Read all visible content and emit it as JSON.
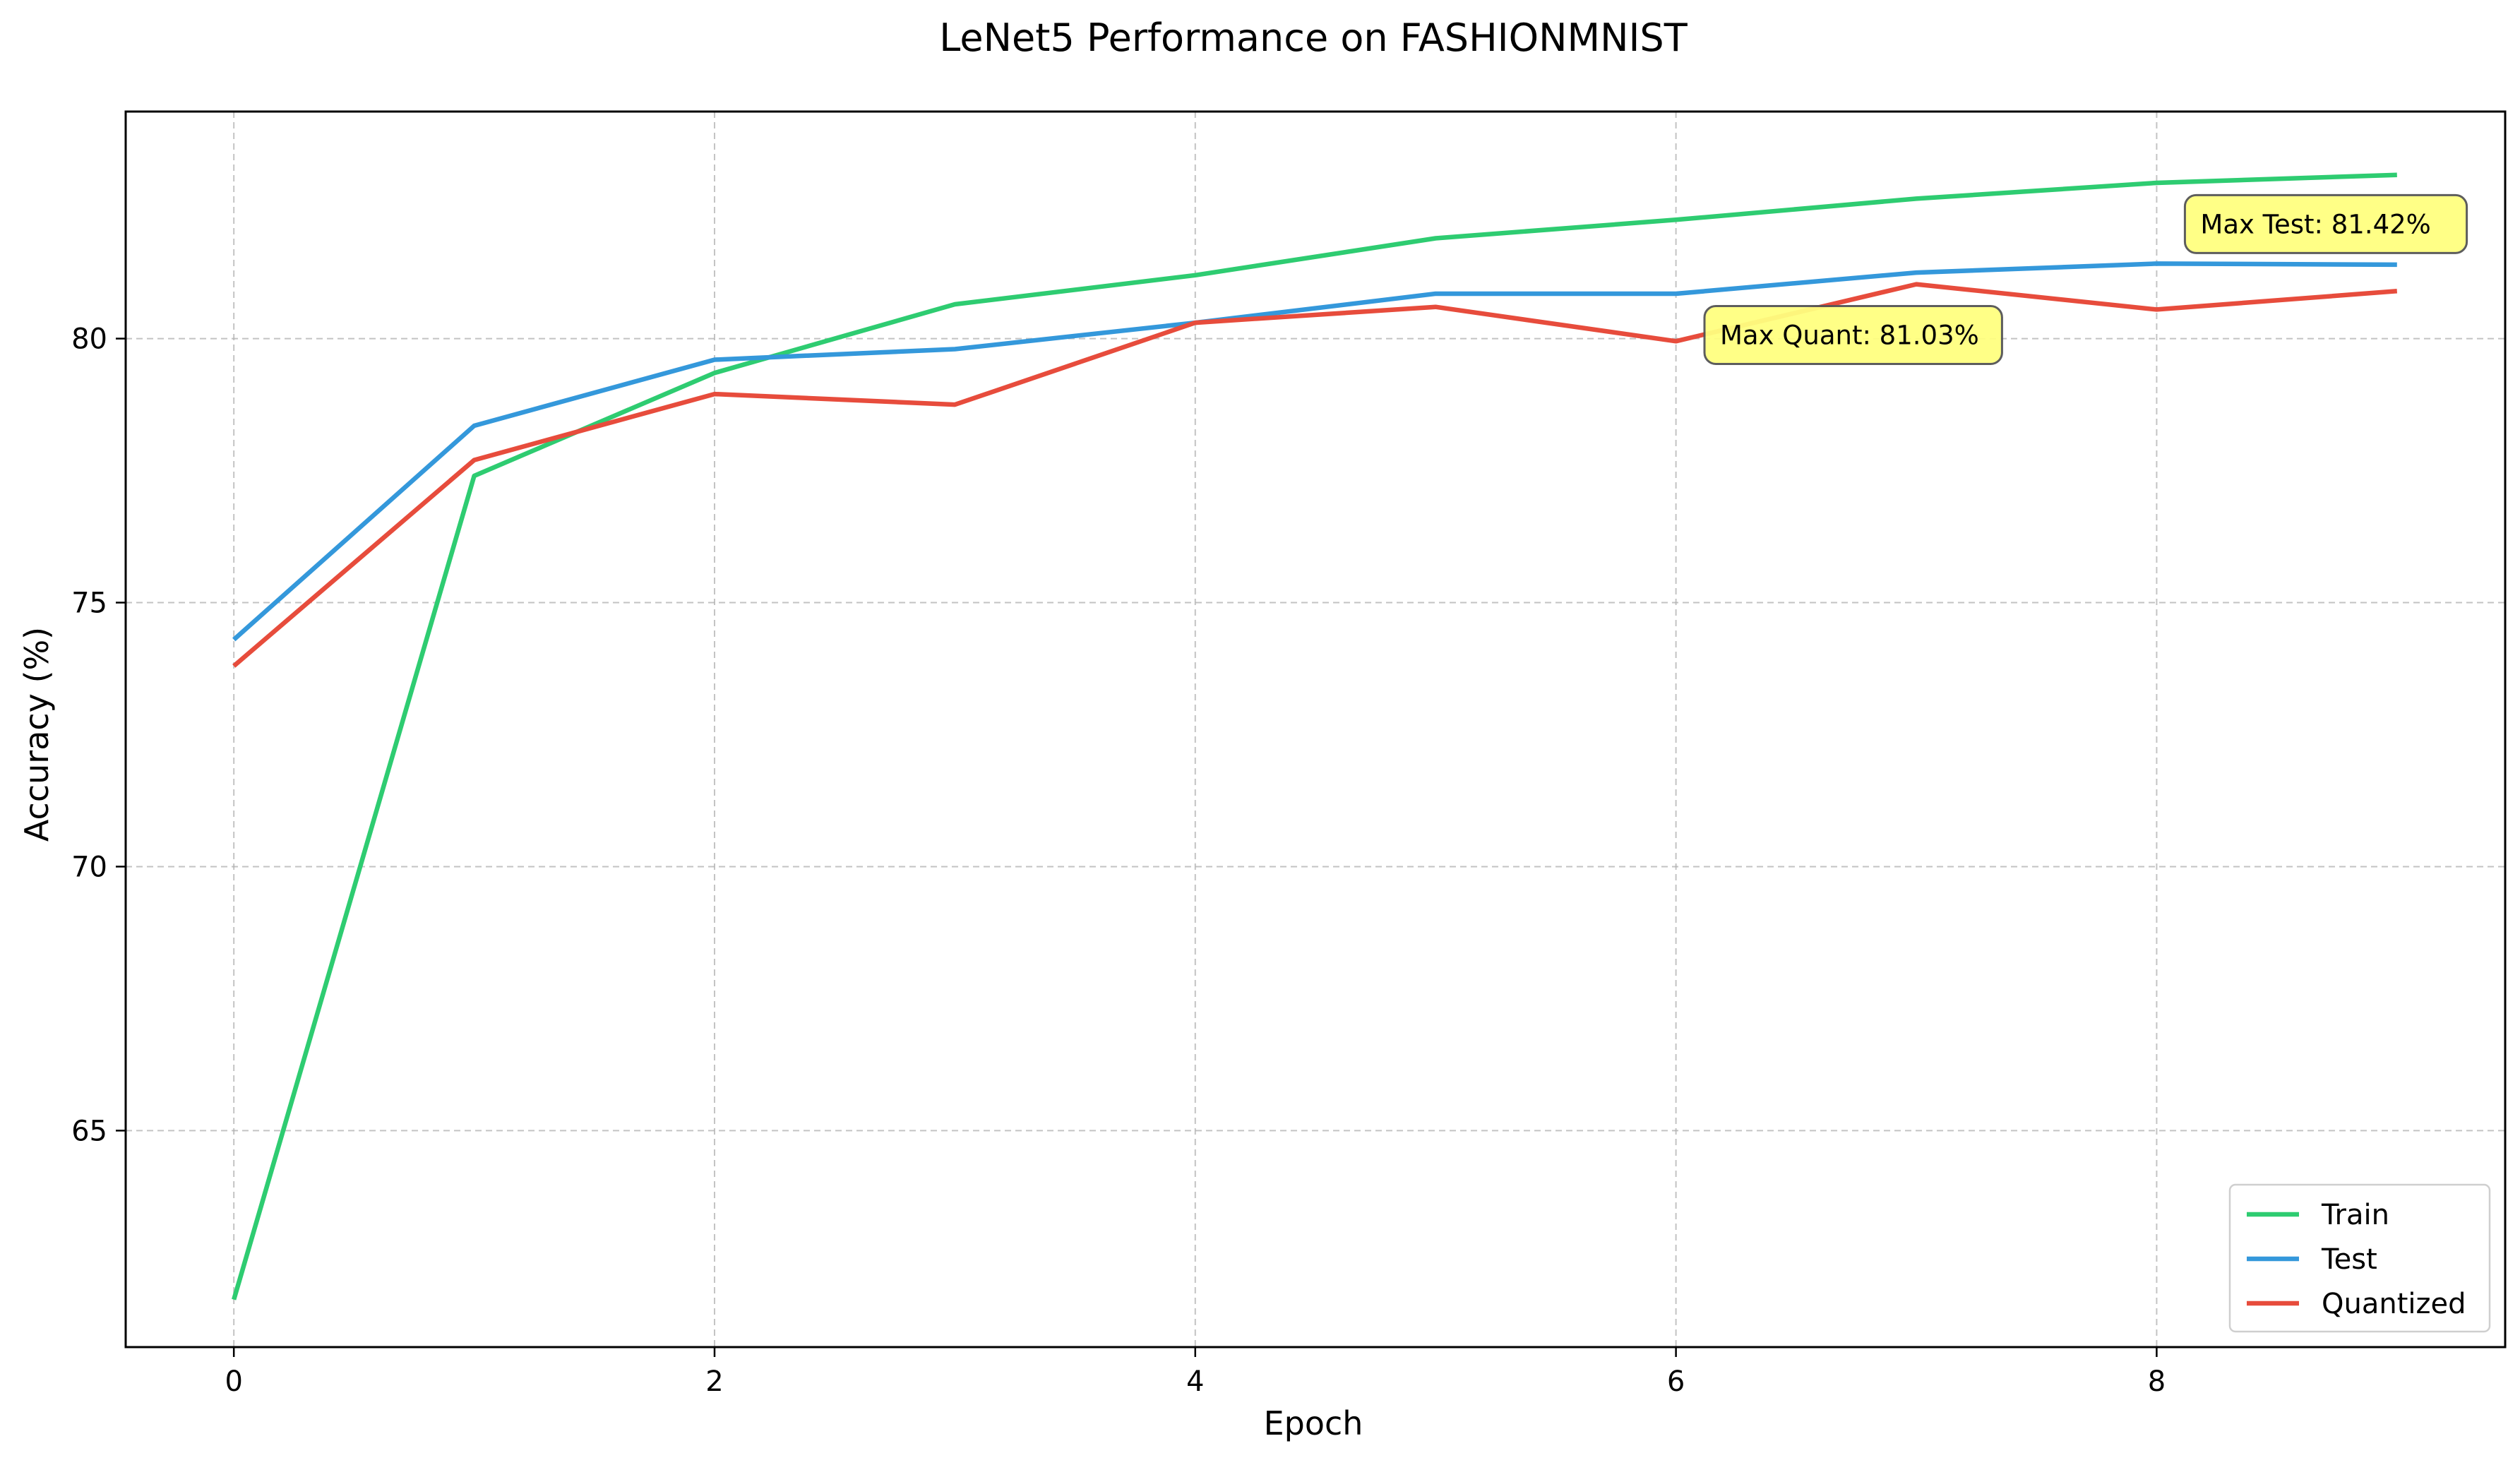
{
  "chart_data": {
    "type": "line",
    "title": "LeNet5 Performance on FASHIONMNIST",
    "xlabel": "Epoch",
    "ylabel": "Accuracy (%)",
    "x": [
      0,
      1,
      2,
      3,
      4,
      5,
      6,
      7,
      8,
      9
    ],
    "xlim": [
      -0.45,
      9.45
    ],
    "ylim": [
      60.9,
      84.3
    ],
    "xticks": [
      0,
      2,
      4,
      6,
      8
    ],
    "yticks": [
      65,
      70,
      75,
      80
    ],
    "grid": true,
    "legend_position": "lower right",
    "series": [
      {
        "name": "Train",
        "color": "#2ecc71",
        "values": [
          61.8,
          77.4,
          79.35,
          80.65,
          81.2,
          81.9,
          82.25,
          82.65,
          82.95,
          83.1
        ]
      },
      {
        "name": "Test",
        "color": "#3498db",
        "values": [
          74.3,
          78.35,
          79.6,
          79.8,
          80.3,
          80.85,
          80.85,
          81.25,
          81.42,
          81.4
        ]
      },
      {
        "name": "Quantized",
        "color": "#e74c3c",
        "values": [
          73.8,
          77.7,
          78.95,
          78.75,
          80.3,
          80.6,
          79.95,
          81.03,
          80.55,
          80.9
        ]
      }
    ],
    "annotations": [
      {
        "text": "Max Test: 81.42%",
        "x": 8,
        "y": 81.42
      },
      {
        "text": "Max Quant: 81.03%",
        "x": 7,
        "y": 81.03
      }
    ],
    "annotation_bg": "#ffff80"
  }
}
